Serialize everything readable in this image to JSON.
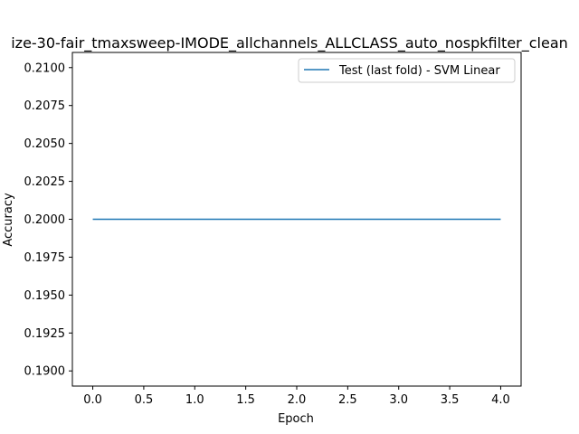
{
  "chart_data": {
    "type": "line",
    "title": "ize-30-fair_tmaxsweep-IMODE_allchannels_ALLCLASS_auto_nospkfilter_clean",
    "xlabel": "Epoch",
    "ylabel": "Accuracy",
    "xlim": [
      -0.2,
      4.2
    ],
    "ylim": [
      0.189,
      0.211
    ],
    "xticks": [
      0.0,
      0.5,
      1.0,
      1.5,
      2.0,
      2.5,
      3.0,
      3.5,
      4.0
    ],
    "xtick_labels": [
      "0.0",
      "0.5",
      "1.0",
      "1.5",
      "2.0",
      "2.5",
      "3.0",
      "3.5",
      "4.0"
    ],
    "yticks": [
      0.19,
      0.1925,
      0.195,
      0.1975,
      0.2,
      0.2025,
      0.205,
      0.2075,
      0.21
    ],
    "ytick_labels": [
      "0.1900",
      "0.1925",
      "0.1950",
      "0.1975",
      "0.2000",
      "0.2025",
      "0.2050",
      "0.2075",
      "0.2100"
    ],
    "legend_position": "top-right",
    "grid": false,
    "series": [
      {
        "name": "Test (last fold) - SVM Linear",
        "color": "#1f77b4",
        "x": [
          0,
          1,
          2,
          3,
          4
        ],
        "y": [
          0.2,
          0.2,
          0.2,
          0.2,
          0.2
        ]
      }
    ]
  }
}
